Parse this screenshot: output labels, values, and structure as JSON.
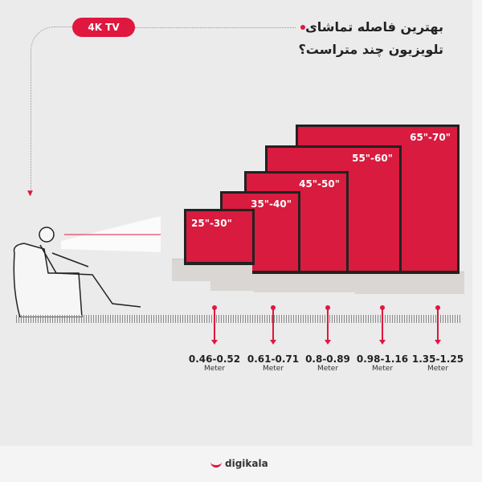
{
  "badge": "4K TV",
  "title": {
    "line1": "بهترین فاصله تماشای",
    "line2": "تلویزیون چند متراست؟"
  },
  "accent": "#e0173f",
  "tvs": [
    {
      "size": "25\"-30\"",
      "distance": "0.46-0.52",
      "unit": "Meter"
    },
    {
      "size": "35\"-40\"",
      "distance": "0.61-0.71",
      "unit": "Meter"
    },
    {
      "size": "45\"-50\"",
      "distance": "0.8-0.89",
      "unit": "Meter"
    },
    {
      "size": "55\"-60\"",
      "distance": "0.98-1.16",
      "unit": "Meter"
    },
    {
      "size": "65\"-70\"",
      "distance": "1.35-1.25",
      "unit": "Meter"
    }
  ],
  "brand": "digikala"
}
